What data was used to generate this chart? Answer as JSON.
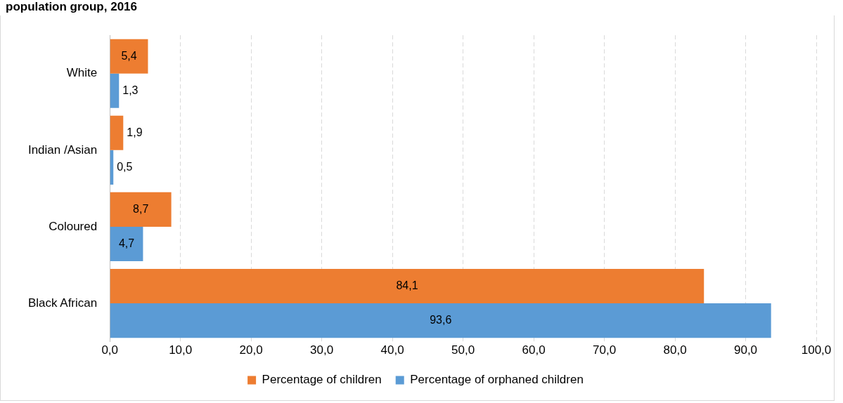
{
  "chart_data": {
    "type": "bar",
    "orientation": "horizontal",
    "title": "population group, 2016",
    "categories": [
      "White",
      "Indian /Asian",
      "Coloured",
      "Black African"
    ],
    "series": [
      {
        "name": "Percentage of children",
        "color": "#ed7d31",
        "values": [
          5.4,
          1.9,
          8.7,
          84.1
        ],
        "value_labels": [
          "5,4",
          "1,9",
          "8,7",
          "84,1"
        ]
      },
      {
        "name": "Percentage of orphaned children",
        "color": "#5b9bd5",
        "values": [
          1.3,
          0.5,
          4.7,
          93.6
        ],
        "value_labels": [
          "1,3",
          "0,5",
          "4,7",
          "93,6"
        ]
      }
    ],
    "xlim": [
      0,
      100
    ],
    "xticks": [
      {
        "value": 0,
        "label": "0,0"
      },
      {
        "value": 10,
        "label": "10,0"
      },
      {
        "value": 20,
        "label": "20,0"
      },
      {
        "value": 30,
        "label": "30,0"
      },
      {
        "value": 40,
        "label": "40,0"
      },
      {
        "value": 50,
        "label": "50,0"
      },
      {
        "value": 60,
        "label": "60,0"
      },
      {
        "value": 70,
        "label": "70,0"
      },
      {
        "value": 80,
        "label": "80,0"
      },
      {
        "value": 90,
        "label": "90,0"
      },
      {
        "value": 100,
        "label": "100,0"
      }
    ],
    "grid": "x",
    "legend": "bottom"
  }
}
